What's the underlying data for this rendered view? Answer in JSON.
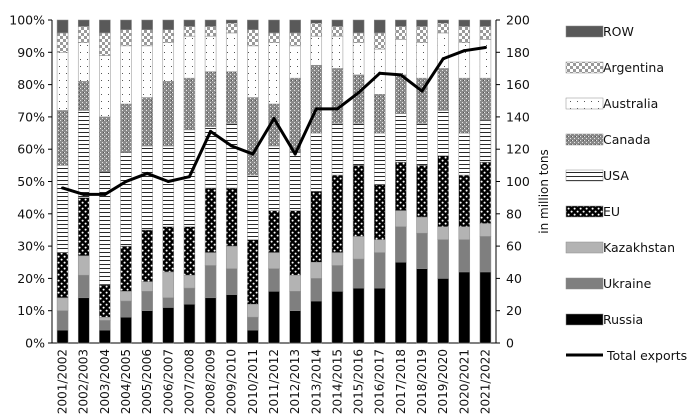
{
  "chart_data": {
    "type": "bar",
    "stacked": "percent",
    "categories": [
      "2001/2002",
      "2002/2003",
      "2003/2004",
      "2004/2005",
      "2005/2006",
      "2006/2007",
      "2007/2008",
      "2008/2009",
      "2009/2010",
      "2010/2011",
      "2011/2012",
      "2012/2013",
      "2013/2014",
      "2014/2015",
      "2015/2016",
      "2016/2017",
      "2017/2018",
      "2018/2019",
      "2019/2020",
      "2020/2021",
      "2021/2022"
    ],
    "series": [
      {
        "name": "Russia",
        "color": "#000000",
        "pattern": "solid-black",
        "values": [
          4,
          14,
          4,
          8,
          10,
          11,
          12,
          14,
          15,
          4,
          16,
          10,
          13,
          16,
          17,
          17,
          25,
          23,
          20,
          22,
          22
        ]
      },
      {
        "name": "Ukraine",
        "color": "#7f7f7f",
        "pattern": "solid-gray",
        "values": [
          6,
          7,
          3,
          5,
          6,
          3,
          5,
          10,
          8,
          4,
          7,
          6,
          7,
          8,
          9,
          11,
          11,
          11,
          12,
          10,
          11
        ]
      },
      {
        "name": "Kazakhstan",
        "color": "#b3b3b3",
        "pattern": "light-gray",
        "values": [
          4,
          6,
          1,
          3,
          3,
          8,
          4,
          4,
          7,
          4,
          5,
          5,
          5,
          4,
          7,
          4,
          5,
          5,
          4,
          4,
          4
        ]
      },
      {
        "name": "EU",
        "color": "#000000",
        "pattern": "dots-on-black",
        "values": [
          14,
          18,
          10,
          14,
          16,
          14,
          15,
          20,
          18,
          20,
          13,
          20,
          22,
          24,
          22,
          17,
          15,
          16,
          22,
          16,
          19
        ]
      },
      {
        "name": "USA",
        "color": "#ffffff",
        "pattern": "horizontal-lines",
        "values": [
          27,
          27,
          35,
          29,
          26,
          25,
          30,
          19,
          20,
          20,
          20,
          18,
          18,
          16,
          13,
          16,
          15,
          13,
          14,
          13,
          13
        ]
      },
      {
        "name": "Canada",
        "color": "#9a9a9a",
        "pattern": "speckled-gray",
        "values": [
          17,
          9,
          17,
          15,
          15,
          20,
          16,
          17,
          16,
          24,
          13,
          23,
          21,
          17,
          15,
          12,
          12,
          14,
          13,
          17,
          13
        ]
      },
      {
        "name": "Australia",
        "color": "#ffffff",
        "pattern": "sparse-dots",
        "values": [
          18,
          12,
          19,
          18,
          16,
          12,
          13,
          11,
          12,
          16,
          19,
          10,
          9,
          10,
          10,
          14,
          11,
          11,
          11,
          11,
          12
        ]
      },
      {
        "name": "Argentina",
        "color": "#cfcfcf",
        "pattern": "checker",
        "values": [
          6,
          5,
          7,
          5,
          5,
          4,
          3,
          3,
          3,
          5,
          3,
          4,
          4,
          3,
          3,
          5,
          4,
          5,
          3,
          5,
          4
        ]
      },
      {
        "name": "ROW",
        "color": "#5a5a5a",
        "pattern": "solid-dark-gray",
        "values": [
          4,
          2,
          4,
          3,
          3,
          3,
          2,
          2,
          1,
          3,
          4,
          4,
          1,
          2,
          4,
          4,
          2,
          2,
          1,
          2,
          2
        ]
      }
    ],
    "line_series": {
      "name": "Total exports",
      "axis": "right",
      "unit": "in million tons",
      "values": [
        96,
        92,
        92,
        100,
        105,
        100,
        103,
        131,
        122,
        117,
        139,
        117,
        145,
        145,
        155,
        167,
        166,
        156,
        176,
        181,
        183
      ]
    },
    "left_axis": {
      "ticks": [
        "0%",
        "10%",
        "20%",
        "30%",
        "40%",
        "50%",
        "60%",
        "70%",
        "80%",
        "90%",
        "100%"
      ],
      "ylim": [
        0,
        100
      ]
    },
    "right_axis": {
      "ticks": [
        "0",
        "20",
        "40",
        "60",
        "80",
        "100",
        "120",
        "140",
        "160",
        "180",
        "200"
      ],
      "ylim": [
        0,
        200
      ],
      "label": "in million tons"
    },
    "legend_position": "right",
    "grid": false
  }
}
